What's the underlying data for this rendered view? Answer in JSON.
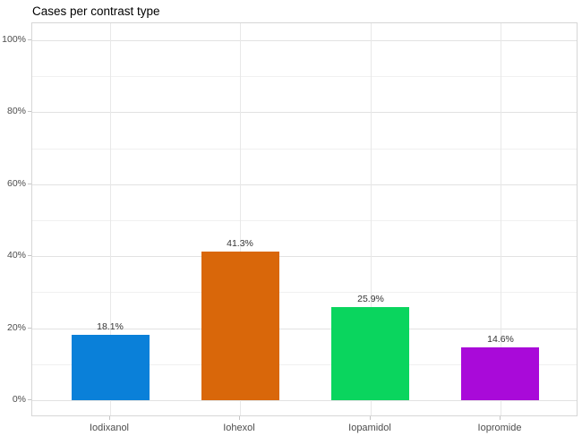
{
  "chart_data": {
    "type": "bar",
    "title": "Cases per contrast type",
    "categories": [
      "Iodixanol",
      "Iohexol",
      "Iopamidol",
      "Iopromide"
    ],
    "values": [
      18.1,
      41.3,
      25.9,
      14.6
    ],
    "value_labels": [
      "18.1%",
      "41.3%",
      "25.9%",
      "14.6%"
    ],
    "bar_colors": [
      "#0a80d9",
      "#d9670a",
      "#0ad55e",
      "#a90ad9"
    ],
    "xlabel": "",
    "ylabel": "",
    "ylim": [
      0,
      100
    ],
    "y_major_ticks": [
      0,
      20,
      40,
      60,
      80,
      100
    ],
    "y_major_tick_labels": [
      "0%",
      "20%",
      "40%",
      "60%",
      "80%",
      "100%"
    ],
    "y_minor_ticks": [
      10,
      30,
      50,
      70,
      90
    ],
    "grid": "on",
    "legend": "none"
  },
  "style": {
    "background": "#ffffff",
    "panel_border_color": "#d6d6d6",
    "grid_major_color": "#e2e2e2",
    "grid_minor_color": "#f0f0f0",
    "vertical_grid_color": "#e8e8e8",
    "tick_mark_color": "#c4c4c4",
    "axis_text_color": "#4d4d4d",
    "value_label_color": "#333333",
    "title_color": "#000000"
  }
}
